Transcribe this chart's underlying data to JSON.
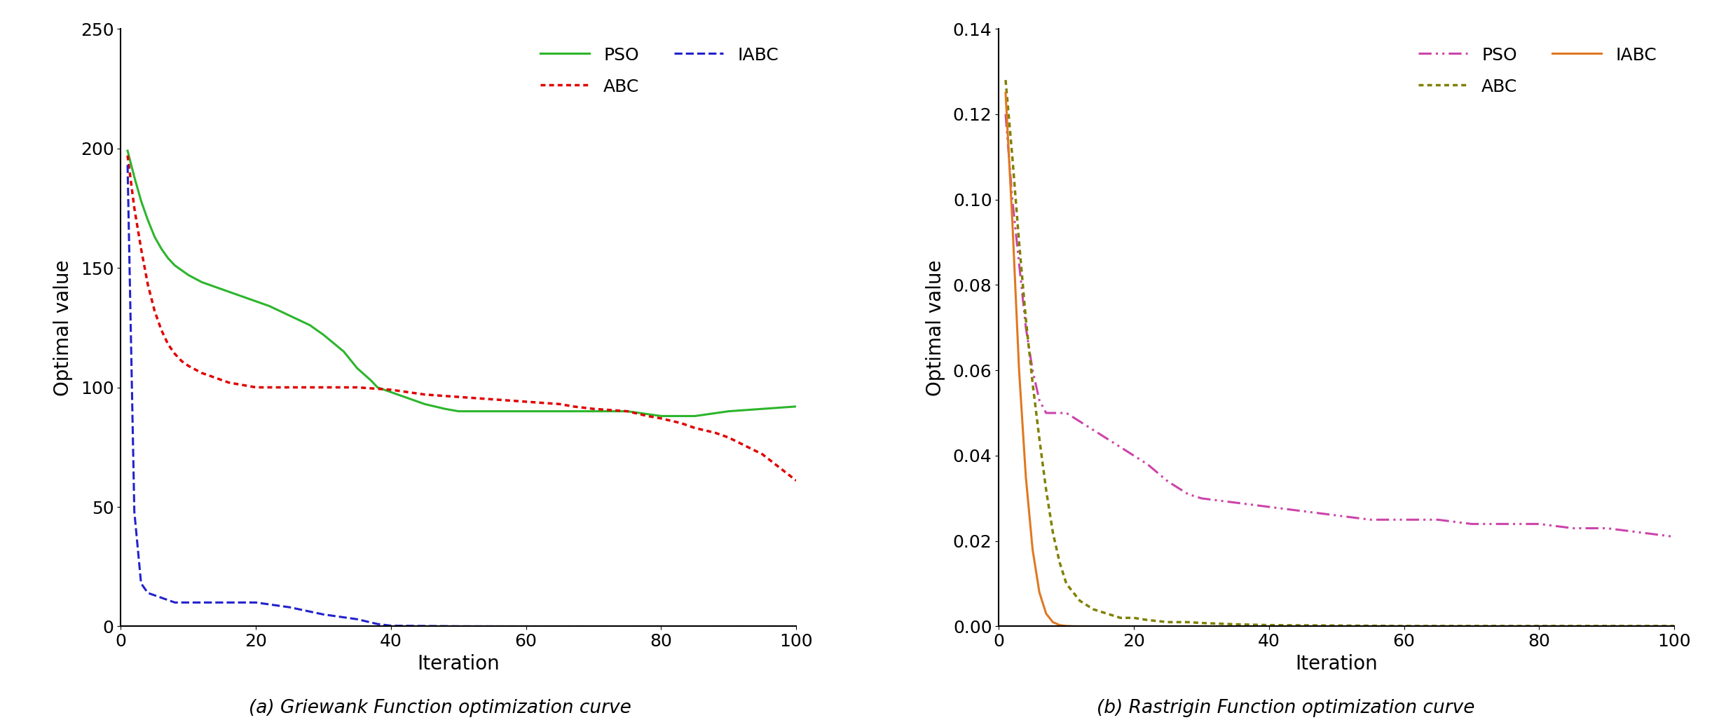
{
  "griewank": {
    "PSO_x": [
      1,
      2,
      3,
      4,
      5,
      6,
      7,
      8,
      9,
      10,
      12,
      14,
      16,
      18,
      20,
      22,
      25,
      28,
      30,
      33,
      35,
      37,
      38,
      39,
      40,
      42,
      45,
      48,
      50,
      55,
      60,
      65,
      70,
      75,
      80,
      85,
      90,
      95,
      100
    ],
    "PSO_y": [
      199,
      188,
      178,
      170,
      163,
      158,
      154,
      151,
      149,
      147,
      144,
      142,
      140,
      138,
      136,
      134,
      130,
      126,
      122,
      115,
      108,
      103,
      100,
      99,
      98,
      96,
      93,
      91,
      90,
      90,
      90,
      90,
      90,
      90,
      88,
      88,
      90,
      91,
      92
    ],
    "ABC_x": [
      1,
      2,
      3,
      4,
      5,
      6,
      7,
      8,
      9,
      10,
      12,
      14,
      16,
      18,
      20,
      25,
      30,
      35,
      40,
      45,
      50,
      55,
      60,
      65,
      67,
      70,
      75,
      78,
      80,
      83,
      85,
      88,
      90,
      95,
      100
    ],
    "ABC_y": [
      197,
      175,
      158,
      143,
      132,
      124,
      118,
      114,
      111,
      109,
      106,
      104,
      102,
      101,
      100,
      100,
      100,
      100,
      99,
      97,
      96,
      95,
      94,
      93,
      92,
      91,
      90,
      88,
      87,
      85,
      83,
      81,
      79,
      72,
      61
    ],
    "IABC_x": [
      1,
      2,
      3,
      4,
      5,
      6,
      7,
      8,
      9,
      10,
      11,
      12,
      13,
      14,
      15,
      16,
      17,
      18,
      19,
      20,
      25,
      30,
      35,
      38,
      40,
      50,
      60,
      70,
      80,
      90,
      100
    ],
    "IABC_y": [
      193,
      48,
      18,
      14,
      13,
      12,
      11,
      10,
      10,
      10,
      10,
      10,
      10,
      10,
      10,
      10,
      10,
      10,
      10,
      10,
      8,
      5,
      3,
      1,
      0.3,
      0.05,
      0.01,
      0.003,
      0.001,
      0.001,
      0.001
    ]
  },
  "rastrigin": {
    "PSO_x": [
      1,
      2,
      3,
      4,
      5,
      6,
      7,
      8,
      9,
      10,
      12,
      14,
      16,
      18,
      20,
      22,
      25,
      28,
      30,
      35,
      40,
      45,
      50,
      55,
      60,
      65,
      70,
      75,
      80,
      85,
      90,
      95,
      100
    ],
    "PSO_y": [
      0.12,
      0.1,
      0.085,
      0.07,
      0.06,
      0.053,
      0.05,
      0.05,
      0.05,
      0.05,
      0.048,
      0.046,
      0.044,
      0.042,
      0.04,
      0.038,
      0.034,
      0.031,
      0.03,
      0.029,
      0.028,
      0.027,
      0.026,
      0.025,
      0.025,
      0.025,
      0.024,
      0.024,
      0.024,
      0.023,
      0.023,
      0.022,
      0.021
    ],
    "ABC_x": [
      1,
      2,
      3,
      4,
      5,
      6,
      7,
      8,
      9,
      10,
      12,
      14,
      16,
      18,
      20,
      22,
      25,
      28,
      30,
      35,
      40,
      50,
      60,
      70,
      80,
      90,
      100
    ],
    "ABC_y": [
      0.128,
      0.11,
      0.09,
      0.072,
      0.057,
      0.044,
      0.032,
      0.022,
      0.015,
      0.01,
      0.006,
      0.004,
      0.003,
      0.002,
      0.002,
      0.0015,
      0.001,
      0.001,
      0.0008,
      0.0005,
      0.0003,
      0.0002,
      0.0001,
      0.0001,
      0.0001,
      0.0001,
      0.0001
    ],
    "IABC_x": [
      1,
      2,
      3,
      4,
      5,
      6,
      7,
      8,
      9,
      10,
      11,
      12,
      13,
      14,
      15,
      20,
      30,
      40,
      50,
      60,
      70,
      80,
      90,
      100
    ],
    "IABC_y": [
      0.125,
      0.095,
      0.06,
      0.035,
      0.018,
      0.008,
      0.003,
      0.001,
      0.0003,
      0.0001,
      3e-05,
      1e-05,
      3e-06,
      1e-06,
      3e-07,
      1e-07,
      1e-07,
      1e-07,
      1e-07,
      1e-07,
      1e-07,
      1e-07,
      1e-07,
      1e-07
    ]
  },
  "colors": {
    "g_PSO": "#2cb52c",
    "g_ABC": "#e00000",
    "g_IABC": "#2222cc",
    "r_PSO": "#cc44aa",
    "r_ABC": "#808000",
    "r_IABC": "#e07820"
  },
  "ylim_griewank": [
    0,
    250
  ],
  "ylim_rastrigin": [
    0,
    0.14
  ],
  "yticks_griewank": [
    0,
    50,
    100,
    150,
    200,
    250
  ],
  "yticks_rastrigin": [
    0.0,
    0.02,
    0.04,
    0.06,
    0.08,
    0.1,
    0.12,
    0.14
  ],
  "xlim": [
    0,
    100
  ],
  "xticks": [
    0,
    20,
    40,
    60,
    80,
    100
  ],
  "xlabel": "Iteration",
  "ylabel": "Optimal value",
  "subtitle_a": "(a) Griewank Function optimization curve",
  "subtitle_b": "(b) Rastrigin Function optimization curve",
  "font_size_labels": 20,
  "font_size_ticks": 18,
  "font_size_legend": 18,
  "font_size_subtitle": 19
}
